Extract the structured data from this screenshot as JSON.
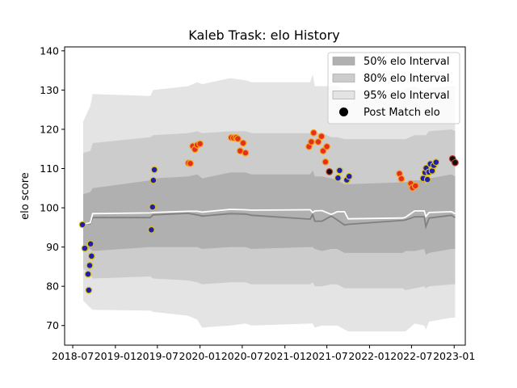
{
  "chart_data": {
    "type": "line",
    "title": "Kaleb Trask: elo History",
    "xlabel": "",
    "ylabel": "elo score",
    "xlim": [
      "2018-05-27",
      "2023-02-18"
    ],
    "ylim": [
      65,
      141
    ],
    "x_ticks": [
      "2018-07",
      "2019-01",
      "2019-07",
      "2020-01",
      "2020-07",
      "2021-01",
      "2021-07",
      "2022-01",
      "2022-07",
      "2023-01"
    ],
    "y_ticks": [
      70,
      80,
      90,
      100,
      110,
      120,
      130,
      140
    ],
    "grid": false,
    "legend_position": "top-right",
    "legend": [
      {
        "label": "50% elo Interval",
        "color": "#b0b0b0",
        "kind": "patch"
      },
      {
        "label": "80% elo Interval",
        "color": "#cccccc",
        "kind": "patch"
      },
      {
        "label": "95% elo Interval",
        "color": "#e4e4e4",
        "kind": "patch"
      },
      {
        "label": "Post Match elo",
        "color": "#000000",
        "kind": "marker"
      }
    ],
    "series": [
      {
        "name": "Mean elo",
        "color": "#ffffff",
        "x": [
          "2018-08-15",
          "2018-09-15",
          "2018-09-25",
          "2019-06-01",
          "2019-06-12",
          "2019-11-10",
          "2019-12-20",
          "2020-01-10",
          "2020-05-10",
          "2020-07-15",
          "2020-08-10",
          "2021-04-20",
          "2021-05-01",
          "2021-05-10",
          "2021-06-10",
          "2021-07-20",
          "2021-08-15",
          "2021-09-15",
          "2021-10-01",
          "2022-05-25",
          "2022-06-05",
          "2022-07-15",
          "2022-08-25",
          "2022-09-01",
          "2022-09-15",
          "2022-12-20",
          "2023-01-05"
        ],
        "values": [
          95.8,
          96.2,
          98.5,
          98.7,
          98.8,
          99.1,
          99.1,
          98.9,
          99.6,
          99.5,
          99.4,
          99.5,
          98.8,
          99.2,
          99.3,
          98.3,
          99.0,
          99.0,
          97.2,
          97.4,
          97.6,
          99.2,
          99.2,
          97.8,
          98.8,
          99.0,
          98.5
        ]
      },
      {
        "name": "Median elo",
        "color": "#808080",
        "x": [
          "2018-08-15",
          "2018-09-15",
          "2018-09-25",
          "2019-06-01",
          "2019-06-12",
          "2019-11-10",
          "2019-12-20",
          "2020-01-10",
          "2020-05-10",
          "2020-07-15",
          "2020-08-10",
          "2021-04-20",
          "2021-05-01",
          "2021-05-10",
          "2021-06-10",
          "2021-07-20",
          "2021-08-15",
          "2021-09-15",
          "2021-10-01",
          "2022-05-25",
          "2022-06-05",
          "2022-07-15",
          "2022-08-25",
          "2022-09-01",
          "2022-09-15",
          "2022-12-20",
          "2023-01-05"
        ],
        "values": [
          95.8,
          96.0,
          97.5,
          97.5,
          98.2,
          98.6,
          98.2,
          97.9,
          98.5,
          98.4,
          98.1,
          97.1,
          98.3,
          96.6,
          96.6,
          97.9,
          96.9,
          95.6,
          95.8,
          96.8,
          96.9,
          97.7,
          97.7,
          95.2,
          97.4,
          98.1,
          97.5
        ]
      }
    ],
    "intervals": {
      "x": [
        "2018-08-15",
        "2018-09-15",
        "2018-09-25",
        "2019-06-01",
        "2019-06-12",
        "2019-11-10",
        "2019-12-20",
        "2020-01-10",
        "2020-05-10",
        "2020-07-15",
        "2020-08-10",
        "2021-04-20",
        "2021-05-01",
        "2021-05-10",
        "2021-06-10",
        "2021-07-20",
        "2021-08-15",
        "2021-09-15",
        "2021-10-01",
        "2022-05-25",
        "2022-06-05",
        "2022-07-15",
        "2022-08-25",
        "2022-09-01",
        "2022-09-15",
        "2022-12-20",
        "2023-01-05"
      ],
      "p95_low": [
        76.3,
        74.5,
        74.0,
        73.8,
        73.5,
        72.5,
        71.5,
        69.5,
        70.0,
        70.5,
        70.0,
        70.5,
        70.5,
        69.5,
        70.0,
        70.0,
        70.0,
        69.0,
        68.5,
        68.5,
        68.5,
        70.5,
        70.0,
        69.0,
        71.0,
        72.0,
        72.0
      ],
      "p80_low": [
        84.5,
        83.0,
        82.0,
        82.5,
        82.0,
        81.5,
        81.0,
        80.5,
        81.0,
        81.0,
        80.5,
        80.5,
        81.0,
        80.0,
        80.0,
        80.5,
        80.5,
        79.5,
        79.5,
        79.5,
        79.0,
        79.5,
        80.0,
        79.5,
        80.0,
        80.5,
        80.5
      ],
      "p50_low": [
        90.0,
        89.5,
        89.0,
        90.0,
        90.0,
        90.0,
        90.0,
        89.5,
        90.0,
        90.0,
        89.5,
        90.0,
        90.0,
        89.5,
        89.0,
        89.5,
        89.5,
        88.5,
        88.5,
        88.5,
        89.0,
        89.0,
        89.5,
        88.0,
        88.5,
        89.5,
        89.5
      ],
      "p50_high": [
        103.5,
        104.0,
        105.0,
        107.0,
        107.5,
        108.0,
        108.5,
        107.5,
        109.0,
        109.0,
        108.5,
        108.5,
        109.5,
        108.0,
        108.0,
        107.5,
        107.0,
        106.0,
        106.0,
        106.5,
        106.5,
        107.0,
        107.0,
        106.0,
        107.5,
        108.5,
        108.0
      ],
      "p80_high": [
        114.0,
        114.5,
        116.5,
        118.0,
        118.5,
        119.0,
        119.5,
        119.0,
        119.5,
        119.5,
        119.0,
        119.0,
        120.0,
        119.0,
        119.0,
        118.0,
        118.0,
        117.5,
        117.5,
        117.5,
        117.5,
        118.5,
        118.5,
        118.5,
        119.5,
        120.0,
        119.5
      ],
      "p95_high": [
        122.0,
        126.0,
        129.0,
        128.5,
        130.0,
        131.0,
        132.0,
        131.5,
        133.0,
        132.5,
        132.0,
        132.0,
        134.0,
        131.0,
        131.0,
        131.0,
        131.0,
        130.0,
        130.0,
        130.0,
        130.5,
        131.0,
        130.0,
        130.0,
        130.5,
        131.0,
        131.0
      ]
    },
    "matches": [
      {
        "date": "2018-08-12",
        "elo": 95.7,
        "result": "loss"
      },
      {
        "date": "2018-08-22",
        "elo": 89.7,
        "result": "loss"
      },
      {
        "date": "2018-09-05",
        "elo": 83.1,
        "result": "loss"
      },
      {
        "date": "2018-09-08",
        "elo": 79.0,
        "result": "loss"
      },
      {
        "date": "2018-09-12",
        "elo": 85.3,
        "result": "loss"
      },
      {
        "date": "2018-09-16",
        "elo": 90.8,
        "result": "loss"
      },
      {
        "date": "2018-09-20",
        "elo": 87.7,
        "result": "loss"
      },
      {
        "date": "2019-06-05",
        "elo": 94.4,
        "result": "loss"
      },
      {
        "date": "2019-06-10",
        "elo": 100.2,
        "result": "loss"
      },
      {
        "date": "2019-06-14",
        "elo": 107.0,
        "result": "loss"
      },
      {
        "date": "2019-06-18",
        "elo": 109.7,
        "result": "loss"
      },
      {
        "date": "2019-11-12",
        "elo": 111.4,
        "result": "win"
      },
      {
        "date": "2019-11-20",
        "elo": 111.3,
        "result": "win"
      },
      {
        "date": "2019-12-01",
        "elo": 115.7,
        "result": "win"
      },
      {
        "date": "2019-12-10",
        "elo": 114.9,
        "result": "win"
      },
      {
        "date": "2019-12-20",
        "elo": 116.0,
        "result": "win"
      },
      {
        "date": "2020-01-01",
        "elo": 116.3,
        "result": "win"
      },
      {
        "date": "2020-05-15",
        "elo": 117.9,
        "result": "win"
      },
      {
        "date": "2020-05-25",
        "elo": 117.8,
        "result": "win"
      },
      {
        "date": "2020-06-05",
        "elo": 117.9,
        "result": "win"
      },
      {
        "date": "2020-06-12",
        "elo": 117.6,
        "result": "win"
      },
      {
        "date": "2020-06-22",
        "elo": 114.5,
        "result": "win"
      },
      {
        "date": "2020-07-05",
        "elo": 116.5,
        "result": "win"
      },
      {
        "date": "2020-07-15",
        "elo": 114.0,
        "result": "win"
      },
      {
        "date": "2021-04-15",
        "elo": 115.6,
        "result": "win"
      },
      {
        "date": "2021-04-25",
        "elo": 116.8,
        "result": "win"
      },
      {
        "date": "2021-05-05",
        "elo": 119.1,
        "result": "win"
      },
      {
        "date": "2021-05-25",
        "elo": 116.8,
        "result": "win"
      },
      {
        "date": "2021-06-08",
        "elo": 118.2,
        "result": "win"
      },
      {
        "date": "2021-06-15",
        "elo": 114.5,
        "result": "win"
      },
      {
        "date": "2021-06-25",
        "elo": 111.7,
        "result": "win"
      },
      {
        "date": "2021-07-01",
        "elo": 115.6,
        "result": "win"
      },
      {
        "date": "2021-07-12",
        "elo": 109.2,
        "result": "draw"
      },
      {
        "date": "2021-08-18",
        "elo": 107.6,
        "result": "loss"
      },
      {
        "date": "2021-08-25",
        "elo": 109.5,
        "result": "loss"
      },
      {
        "date": "2021-09-25",
        "elo": 107.1,
        "result": "loss"
      },
      {
        "date": "2021-10-05",
        "elo": 108.0,
        "result": "loss"
      },
      {
        "date": "2022-05-10",
        "elo": 108.7,
        "result": "win"
      },
      {
        "date": "2022-05-18",
        "elo": 107.4,
        "result": "win"
      },
      {
        "date": "2022-06-28",
        "elo": 106.2,
        "result": "win"
      },
      {
        "date": "2022-07-05",
        "elo": 105.1,
        "result": "win"
      },
      {
        "date": "2022-07-18",
        "elo": 105.6,
        "result": "win"
      },
      {
        "date": "2022-08-20",
        "elo": 107.5,
        "result": "loss"
      },
      {
        "date": "2022-08-28",
        "elo": 109.0,
        "result": "loss"
      },
      {
        "date": "2022-09-02",
        "elo": 110.1,
        "result": "loss"
      },
      {
        "date": "2022-09-08",
        "elo": 107.2,
        "result": "loss"
      },
      {
        "date": "2022-09-14",
        "elo": 109.1,
        "result": "loss"
      },
      {
        "date": "2022-09-20",
        "elo": 111.2,
        "result": "loss"
      },
      {
        "date": "2022-09-28",
        "elo": 109.4,
        "result": "loss"
      },
      {
        "date": "2022-10-05",
        "elo": 110.8,
        "result": "loss"
      },
      {
        "date": "2022-10-15",
        "elo": 111.6,
        "result": "loss"
      },
      {
        "date": "2022-12-25",
        "elo": 112.5,
        "result": "draw"
      },
      {
        "date": "2023-01-05",
        "elo": 111.5,
        "result": "draw"
      }
    ],
    "marker_colors": {
      "win": {
        "fill": "#e5301c",
        "edge": "#f5a623"
      },
      "loss": {
        "fill": "#1f1fa8",
        "edge": "#d8c020"
      },
      "draw": {
        "fill": "#111111",
        "edge": "#c0392b"
      }
    }
  }
}
